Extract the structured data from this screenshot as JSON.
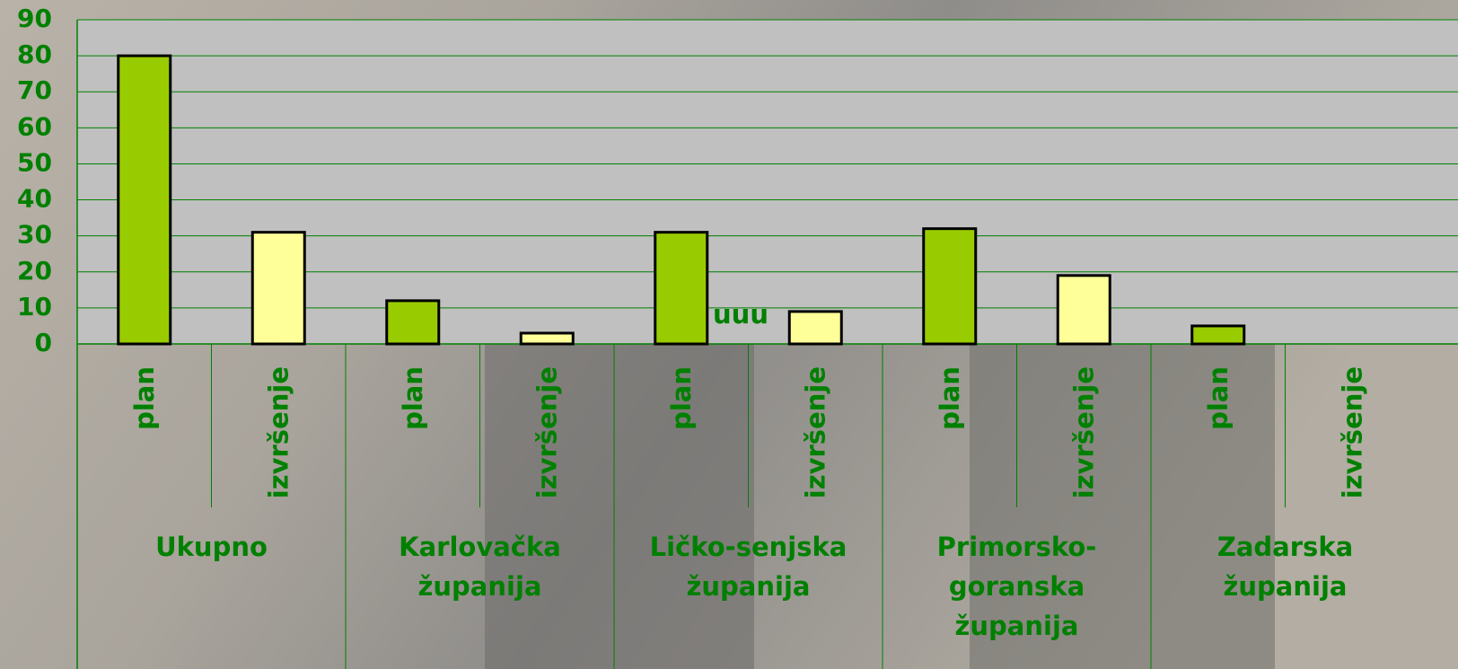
{
  "chart_data": {
    "type": "bar",
    "categories": [
      [
        "Ukupno"
      ],
      [
        "Karlovačka",
        "županija"
      ],
      [
        "Ličko-senjska",
        "županija"
      ],
      [
        "Primorsko-",
        "goranska",
        "županija"
      ],
      [
        "Zadarska",
        "županija"
      ]
    ],
    "series": [
      {
        "name": "plan",
        "color": "#99cc00",
        "values": [
          80,
          12,
          31,
          32,
          5
        ]
      },
      {
        "name": "izvršenje",
        "color": "#ffff99",
        "values": [
          31,
          3,
          9,
          19,
          null
        ]
      }
    ],
    "annotation": "uuu",
    "ylim": [
      0,
      90
    ],
    "yticks": [
      0,
      10,
      20,
      30,
      40,
      50,
      60,
      70,
      80,
      90
    ],
    "grid": true
  }
}
